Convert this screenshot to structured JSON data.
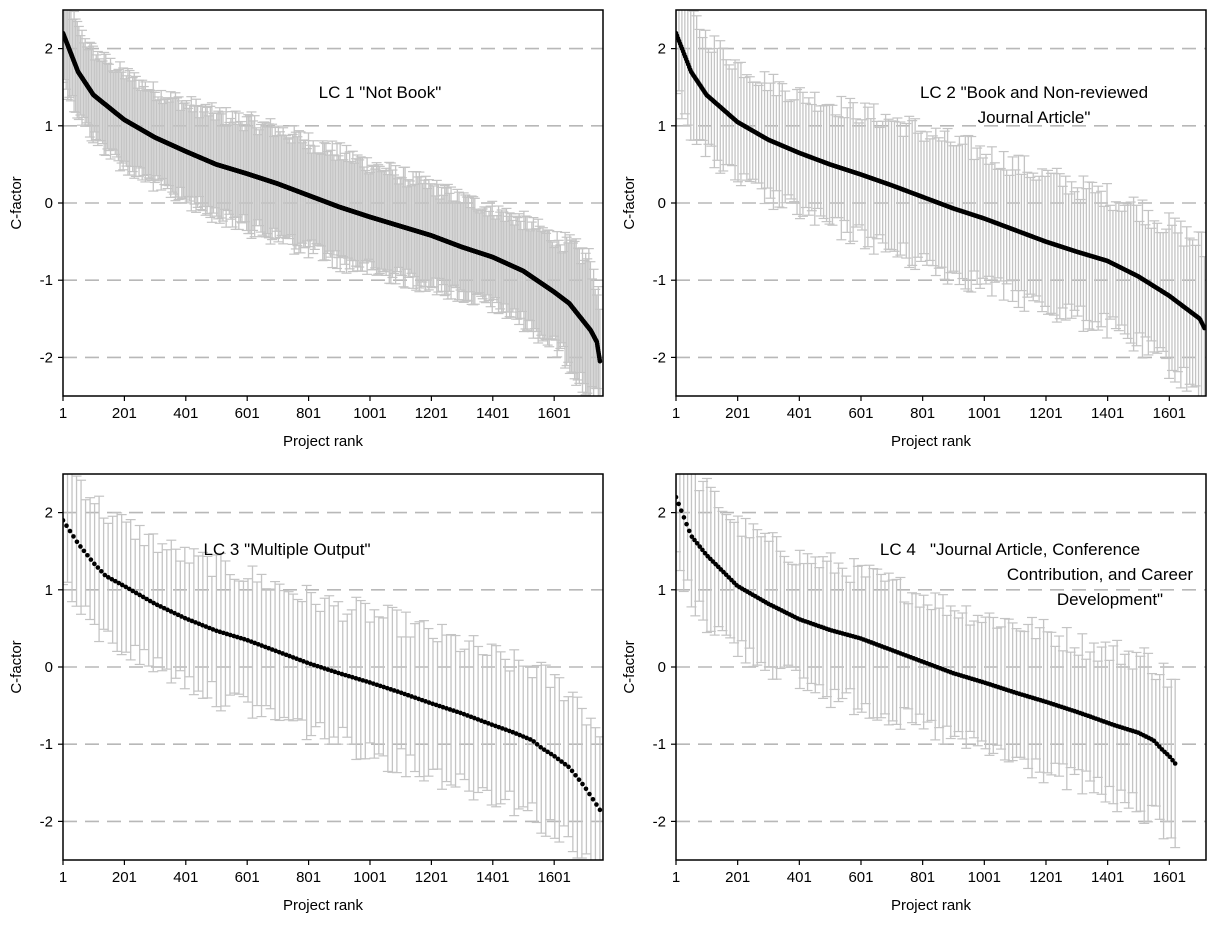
{
  "chart_data": [
    {
      "type": "scatter",
      "title": [
        "LC 1 \"Not Book\""
      ],
      "xlabel": "Project rank",
      "ylabel": "C-factor",
      "xlim": [
        1,
        1760
      ],
      "ylim": [
        -2.5,
        2.5
      ],
      "x_ticks": [
        "1",
        "201",
        "401",
        "601",
        "801",
        "1001",
        "1201",
        "1401",
        "1601"
      ],
      "y_ticks": [
        "2",
        "1",
        "0",
        "-1",
        "-2"
      ],
      "grid": "dashed horizontal at integer y",
      "n_points": 1750,
      "n_error_bars": 340,
      "series": [
        {
          "marker": "black dot with light gray error bars",
          "x": [
            1,
            50,
            100,
            200,
            300,
            400,
            500,
            600,
            700,
            800,
            900,
            1000,
            1100,
            1200,
            1300,
            1400,
            1500,
            1600,
            1650,
            1700,
            1720,
            1740,
            1750
          ],
          "y": [
            2.2,
            1.7,
            1.4,
            1.08,
            0.85,
            0.67,
            0.5,
            0.38,
            0.25,
            0.1,
            -0.05,
            -0.18,
            -0.3,
            -0.42,
            -0.57,
            -0.7,
            -0.88,
            -1.15,
            -1.3,
            -1.55,
            -1.65,
            -1.8,
            -2.05
          ],
          "err": [
            0.6,
            0.55,
            0.55,
            0.6,
            0.6,
            0.62,
            0.65,
            0.68,
            0.7,
            0.7,
            0.7,
            0.68,
            0.66,
            0.64,
            0.62,
            0.62,
            0.65,
            0.7,
            0.75,
            0.85,
            0.9,
            0.7,
            0.7
          ]
        }
      ]
    },
    {
      "type": "scatter",
      "title": [
        "LC 2 \"Book and Non-reviewed",
        "Journal Article\""
      ],
      "xlabel": "Project rank",
      "ylabel": "C-factor",
      "xlim": [
        1,
        1720
      ],
      "ylim": [
        -2.5,
        2.5
      ],
      "x_ticks": [
        "1",
        "201",
        "401",
        "601",
        "801",
        "1001",
        "1201",
        "1401",
        "1601"
      ],
      "y_ticks": [
        "2",
        "1",
        "0",
        "-1",
        "-2"
      ],
      "grid": "dashed horizontal at integer y",
      "n_points": 520,
      "n_error_bars": 180,
      "series": [
        {
          "marker": "black dot with light gray error bars",
          "x": [
            1,
            50,
            100,
            200,
            300,
            400,
            500,
            600,
            700,
            800,
            900,
            1000,
            1100,
            1200,
            1300,
            1400,
            1500,
            1600,
            1650,
            1700,
            1715
          ],
          "y": [
            2.2,
            1.7,
            1.4,
            1.05,
            0.82,
            0.65,
            0.5,
            0.37,
            0.23,
            0.08,
            -0.07,
            -0.2,
            -0.35,
            -0.5,
            -0.63,
            -0.75,
            -0.95,
            -1.2,
            -1.35,
            -1.5,
            -1.62
          ],
          "err": [
            0.8,
            0.75,
            0.75,
            0.75,
            0.75,
            0.75,
            0.8,
            0.8,
            0.85,
            0.85,
            0.85,
            0.85,
            0.85,
            0.85,
            0.85,
            0.85,
            0.9,
            0.9,
            0.95,
            1.0,
            1.0
          ]
        }
      ]
    },
    {
      "type": "scatter",
      "title": [
        "LC 3 \"Multiple Output\""
      ],
      "xlabel": "Project rank",
      "ylabel": "C-factor",
      "xlim": [
        1,
        1760
      ],
      "ylim": [
        -2.5,
        2.5
      ],
      "x_ticks": [
        "1",
        "201",
        "401",
        "601",
        "801",
        "1001",
        "1201",
        "1401",
        "1601"
      ],
      "y_ticks": [
        "2",
        "1",
        "0",
        "-1",
        "-2"
      ],
      "grid": "dashed horizontal at integer y",
      "n_points": 155,
      "n_error_bars": 120,
      "series": [
        {
          "marker": "black dot with light gray error bars",
          "x": [
            1,
            50,
            100,
            140,
            200,
            300,
            400,
            500,
            600,
            700,
            800,
            900,
            1000,
            1100,
            1200,
            1300,
            1400,
            1470,
            1530,
            1560,
            1600,
            1650,
            1700,
            1750
          ],
          "y": [
            1.9,
            1.6,
            1.35,
            1.18,
            1.05,
            0.82,
            0.63,
            0.47,
            0.35,
            0.2,
            0.05,
            -0.08,
            -0.2,
            -0.33,
            -0.47,
            -0.6,
            -0.75,
            -0.85,
            -0.95,
            -1.05,
            -1.15,
            -1.3,
            -1.55,
            -1.85
          ],
          "err": [
            0.8,
            0.85,
            0.85,
            0.8,
            0.8,
            0.8,
            0.8,
            0.85,
            0.85,
            0.85,
            0.85,
            0.85,
            0.9,
            0.9,
            0.9,
            0.9,
            0.9,
            0.9,
            0.95,
            0.95,
            0.95,
            1.0,
            1.0,
            1.0
          ]
        }
      ]
    },
    {
      "type": "scatter",
      "title": [
        "LC 4   \"Journal Article, Conference",
        "Contribution, and Career",
        "Development\""
      ],
      "xlabel": "Project rank",
      "ylabel": "C-factor",
      "xlim": [
        1,
        1720
      ],
      "ylim": [
        -2.5,
        2.5
      ],
      "x_ticks": [
        "1",
        "201",
        "401",
        "601",
        "801",
        "1001",
        "1201",
        "1401",
        "1601"
      ],
      "y_ticks": [
        "2",
        "1",
        "0",
        "-1",
        "-2"
      ],
      "grid": "dashed horizontal at integer y",
      "n_points": 190,
      "n_error_bars": 130,
      "series": [
        {
          "marker": "black dot with light gray error bars",
          "x": [
            1,
            50,
            100,
            200,
            300,
            400,
            500,
            600,
            700,
            800,
            900,
            1000,
            1100,
            1200,
            1300,
            1350,
            1420,
            1500,
            1550,
            1580,
            1600,
            1620
          ],
          "y": [
            2.2,
            1.7,
            1.45,
            1.05,
            0.82,
            0.62,
            0.48,
            0.37,
            0.22,
            0.07,
            -0.08,
            -0.2,
            -0.33,
            -0.45,
            -0.58,
            -0.65,
            -0.75,
            -0.85,
            -0.95,
            -1.08,
            -1.15,
            -1.25
          ],
          "err": [
            0.8,
            0.85,
            0.85,
            0.8,
            0.8,
            0.8,
            0.85,
            0.85,
            0.85,
            0.85,
            0.85,
            0.85,
            0.9,
            0.9,
            0.9,
            0.9,
            0.95,
            1.0,
            1.0,
            1.0,
            1.0,
            1.0
          ]
        }
      ]
    }
  ]
}
